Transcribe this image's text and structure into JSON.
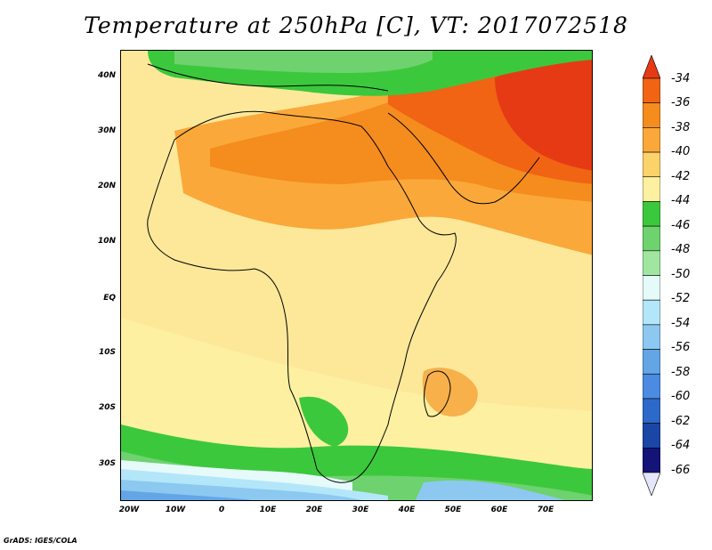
{
  "title": "Temperature at 250hPa [C], VT: 2017072518",
  "credit": "GrADS: IGES/COLA",
  "map": {
    "lat_labels": [
      "40N",
      "30N",
      "20N",
      "10N",
      "EQ",
      "10S",
      "20S",
      "30S"
    ],
    "lon_labels": [
      "20W",
      "10W",
      "0",
      "10E",
      "20E",
      "30E",
      "40E",
      "50E",
      "60E",
      "70E"
    ]
  },
  "colorbar": {
    "labels": [
      "-34",
      "-36",
      "-38",
      "-40",
      "-42",
      "-44",
      "-46",
      "-48",
      "-50",
      "-52",
      "-54",
      "-56",
      "-58",
      "-60",
      "-62",
      "-64",
      "-66"
    ],
    "colors": [
      "#e63a14",
      "#f06414",
      "#f58c1e",
      "#faa83a",
      "#fcd26a",
      "#fdf0a0",
      "#3cc83c",
      "#6ed26e",
      "#a0e6a0",
      "#e6fafa",
      "#b4e6fa",
      "#8cc8f0",
      "#64a5e6",
      "#4b8be1",
      "#2d69c8",
      "#1a46a5",
      "#141478",
      "#e6e6fa"
    ]
  }
}
